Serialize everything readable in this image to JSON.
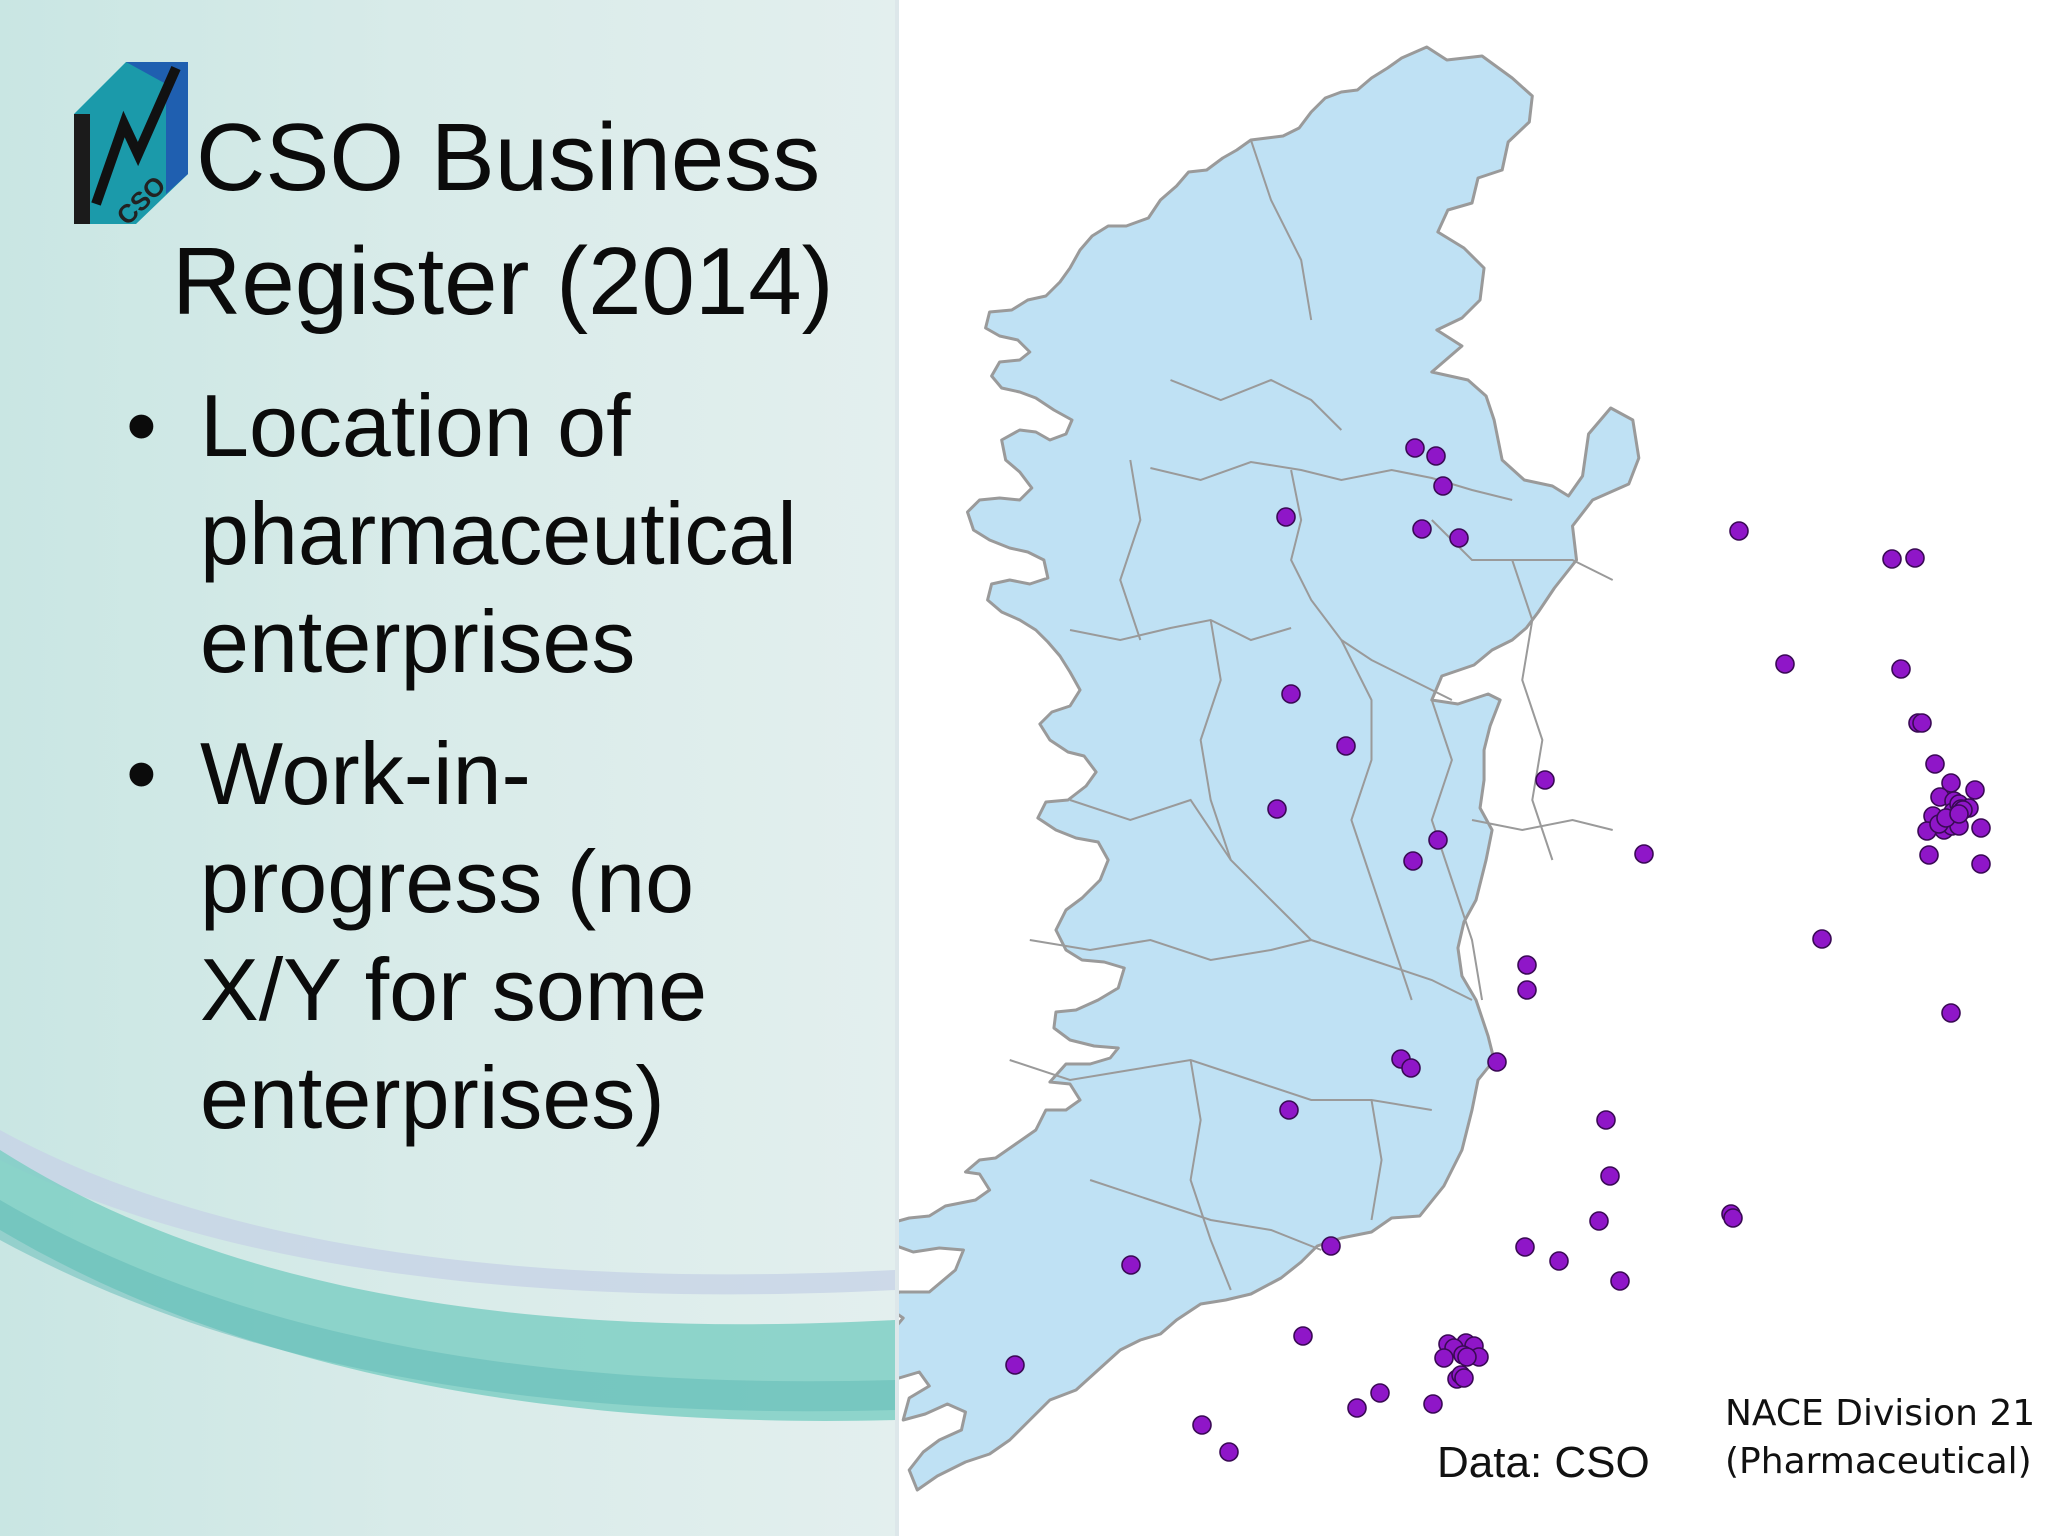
{
  "slide": {
    "title_line1": "CSO Business",
    "title_line2": "Register (2014)",
    "logo_text": "CSO",
    "bullets": [
      {
        "lines": [
          "Location of",
          "pharmaceutical",
          "enterprises"
        ]
      },
      {
        "lines": [
          "Work-in-",
          "progress (no",
          "X/Y for some",
          "enterprises)"
        ]
      }
    ],
    "bullet_symbol": "•"
  },
  "map": {
    "data_credit": "Data: CSO",
    "legend_line1": "NACE Division 21",
    "legend_line2": "(Pharmaceutical)",
    "colors": {
      "land": "#bfe1f4",
      "boundary": "#9a9a9a",
      "enterprise_point": "#8f16c8",
      "point_outline": "#3a0a55"
    },
    "enterprise_point_count": 78
  }
}
